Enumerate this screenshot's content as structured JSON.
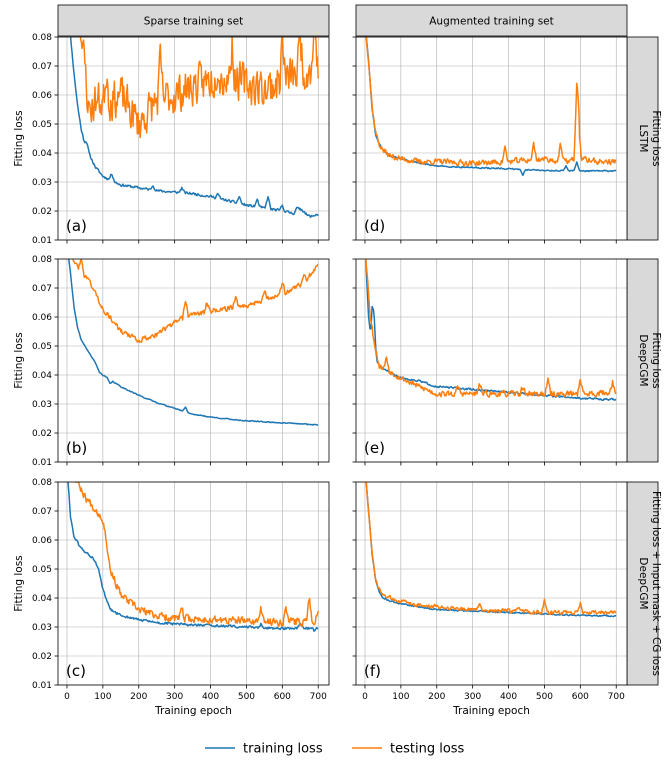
{
  "figure": {
    "legend": [
      {
        "label": "training loss",
        "color": "#1f77b4"
      },
      {
        "label": "testing loss",
        "color": "#ff7f0e"
      }
    ]
  },
  "chart_data": {
    "type": "line",
    "column_titles": [
      "Sparse training set",
      "Augmented training set"
    ],
    "row_titles": [
      [
        "LSTM",
        "Fitting loss"
      ],
      [
        "DeepCGM",
        "Fitting loss"
      ],
      [
        "DeepCGM",
        "Fitting loss + Input mask + CG loss"
      ]
    ],
    "xlabel": "Training epoch",
    "ylabel": "Fitting loss",
    "xlim": [
      -25,
      730
    ],
    "ylim": [
      0.01,
      0.08
    ],
    "xticks": [
      0,
      100,
      200,
      300,
      400,
      500,
      600,
      700
    ],
    "yticks": [
      0.01,
      0.02,
      0.03,
      0.04,
      0.05,
      0.06,
      0.07,
      0.08
    ],
    "ytick_labels": [
      "0.01",
      "0.02",
      "0.03",
      "0.04",
      "0.05",
      "0.06",
      "0.07",
      "0.08"
    ],
    "grid": true,
    "panels": [
      {
        "tag": "(a)",
        "row": 0,
        "col": 0,
        "series": [
          {
            "name": "training loss",
            "color": "#1f77b4",
            "noise": 0.0004,
            "seed": 11,
            "x": [
              0,
              10,
              20,
              30,
              40,
              50,
              60,
              80,
              100,
              150,
              200,
              250,
              300,
              350,
              400,
              450,
              500,
              550,
              600,
              640,
              650,
              660,
              680,
              690,
              695,
              700
            ],
            "y": [
              0.085,
              0.08,
              0.067,
              0.056,
              0.048,
              0.043,
              0.04,
              0.035,
              0.032,
              0.029,
              0.028,
              0.027,
              0.0265,
              0.026,
              0.025,
              0.0235,
              0.022,
              0.021,
              0.02,
              0.019,
              0.021,
              0.019,
              0.018,
              0.0185,
              0.019,
              0.0185
            ],
            "spikes": [
              [
                55,
                0.044
              ],
              [
                125,
                0.033
              ],
              [
                240,
                0.029
              ],
              [
                320,
                0.028
              ],
              [
                420,
                0.026
              ],
              [
                480,
                0.025
              ],
              [
                530,
                0.024
              ],
              [
                560,
                0.025
              ],
              [
                600,
                0.022
              ],
              [
                640,
                0.021
              ],
              [
                660,
                0.02
              ]
            ]
          },
          {
            "name": "testing loss",
            "color": "#ff7f0e",
            "noise": 0.006,
            "seed": 23,
            "x": [
              0,
              30,
              50,
              60,
              70,
              80,
              100,
              120,
              150,
              200,
              250,
              300,
              350,
              400,
              450,
              500,
              550,
              600,
              650,
              700
            ],
            "y": [
              0.09,
              0.085,
              0.07,
              0.055,
              0.056,
              0.058,
              0.058,
              0.058,
              0.06,
              0.05,
              0.058,
              0.06,
              0.063,
              0.065,
              0.066,
              0.064,
              0.062,
              0.065,
              0.068,
              0.07
            ],
            "spikes": [
              [
                35,
                0.092
              ],
              [
                110,
                0.069
              ],
              [
                260,
                0.071
              ],
              [
                420,
                0.072
              ],
              [
                460,
                0.078
              ],
              [
                600,
                0.08
              ],
              [
                650,
                0.082
              ],
              [
                690,
                0.085
              ]
            ]
          }
        ]
      },
      {
        "tag": "(d)",
        "row": 0,
        "col": 1,
        "series": [
          {
            "name": "training loss",
            "color": "#1f77b4",
            "noise": 0.0002,
            "seed": 31,
            "x": [
              0,
              10,
              20,
              30,
              40,
              50,
              70,
              100,
              150,
              200,
              300,
              400,
              500,
              600,
              700
            ],
            "y": [
              0.085,
              0.072,
              0.055,
              0.046,
              0.043,
              0.041,
              0.039,
              0.038,
              0.0365,
              0.0355,
              0.035,
              0.0345,
              0.034,
              0.0338,
              0.0338
            ],
            "spikes": [
              [
                440,
                0.0325
              ],
              [
                560,
                0.0355
              ],
              [
                590,
                0.037
              ]
            ]
          },
          {
            "name": "testing loss",
            "color": "#ff7f0e",
            "noise": 0.0009,
            "seed": 37,
            "x": [
              0,
              10,
              20,
              30,
              40,
              50,
              70,
              100,
              150,
              200,
              300,
              400,
              500,
              550,
              600,
              650,
              700
            ],
            "y": [
              0.085,
              0.072,
              0.056,
              0.047,
              0.043,
              0.041,
              0.039,
              0.038,
              0.037,
              0.037,
              0.0365,
              0.037,
              0.038,
              0.037,
              0.038,
              0.037,
              0.037
            ],
            "spikes": [
              [
                390,
                0.042
              ],
              [
                470,
                0.043
              ],
              [
                545,
                0.043
              ],
              [
                590,
                0.06
              ],
              [
                595,
                0.05
              ]
            ]
          }
        ]
      },
      {
        "tag": "(b)",
        "row": 1,
        "col": 0,
        "series": [
          {
            "name": "training loss",
            "color": "#1f77b4",
            "noise": 0.00015,
            "seed": 41,
            "x": [
              0,
              10,
              20,
              30,
              40,
              50,
              60,
              70,
              80,
              90,
              100,
              150,
              200,
              250,
              300,
              350,
              400,
              450,
              500,
              600,
              700
            ],
            "y": [
              0.085,
              0.075,
              0.063,
              0.056,
              0.052,
              0.05,
              0.048,
              0.046,
              0.044,
              0.041,
              0.04,
              0.036,
              0.033,
              0.0305,
              0.0285,
              0.0265,
              0.0255,
              0.0248,
              0.0242,
              0.0235,
              0.0228
            ],
            "spikes": [
              [
                120,
                0.037
              ],
              [
                330,
                0.029
              ]
            ]
          },
          {
            "name": "testing loss",
            "color": "#ff7f0e",
            "noise": 0.0008,
            "seed": 43,
            "x": [
              0,
              30,
              60,
              100,
              150,
              200,
              250,
              300,
              350,
              400,
              450,
              500,
              550,
              600,
              650,
              700
            ],
            "y": [
              0.085,
              0.077,
              0.073,
              0.063,
              0.055,
              0.052,
              0.054,
              0.058,
              0.061,
              0.062,
              0.063,
              0.064,
              0.066,
              0.068,
              0.071,
              0.0775
            ],
            "spikes": [
              [
                40,
                0.08
              ],
              [
                330,
                0.066
              ],
              [
                390,
                0.065
              ],
              [
                470,
                0.067
              ],
              [
                550,
                0.069
              ],
              [
                600,
                0.072
              ],
              [
                660,
                0.074
              ]
            ]
          }
        ]
      },
      {
        "tag": "(e)",
        "row": 1,
        "col": 1,
        "series": [
          {
            "name": "training loss",
            "color": "#1f77b4",
            "noise": 0.0003,
            "seed": 51,
            "x": [
              0,
              10,
              15,
              20,
              30,
              40,
              50,
              70,
              100,
              150,
              200,
              300,
              400,
              500,
              600,
              700
            ],
            "y": [
              0.085,
              0.06,
              0.055,
              0.06,
              0.046,
              0.043,
              0.042,
              0.041,
              0.039,
              0.038,
              0.036,
              0.035,
              0.034,
              0.033,
              0.032,
              0.0315
            ],
            "spikes": [
              [
                15,
                0.055
              ],
              [
                25,
                0.062
              ]
            ]
          },
          {
            "name": "testing loss",
            "color": "#ff7f0e",
            "noise": 0.0009,
            "seed": 53,
            "x": [
              0,
              15,
              25,
              40,
              60,
              100,
              150,
              200,
              300,
              400,
              500,
              600,
              700
            ],
            "y": [
              0.085,
              0.06,
              0.052,
              0.043,
              0.042,
              0.039,
              0.036,
              0.0335,
              0.0335,
              0.0335,
              0.0335,
              0.0335,
              0.034
            ],
            "spikes": [
              [
                60,
                0.046
              ],
              [
                260,
                0.036
              ],
              [
                320,
                0.037
              ],
              [
                440,
                0.036
              ],
              [
                510,
                0.038
              ],
              [
                600,
                0.039
              ],
              [
                690,
                0.038
              ]
            ]
          }
        ]
      },
      {
        "tag": "(c)",
        "row": 2,
        "col": 0,
        "series": [
          {
            "name": "training loss",
            "color": "#1f77b4",
            "noise": 0.0004,
            "seed": 61,
            "x": [
              0,
              10,
              20,
              30,
              40,
              50,
              60,
              70,
              80,
              90,
              100,
              120,
              150,
              200,
              250,
              300,
              400,
              500,
              600,
              700
            ],
            "y": [
              0.085,
              0.068,
              0.061,
              0.059,
              0.057,
              0.056,
              0.055,
              0.054,
              0.052,
              0.049,
              0.043,
              0.036,
              0.034,
              0.0325,
              0.0315,
              0.031,
              0.0305,
              0.03,
              0.0295,
              0.0295
            ],
            "spikes": [
              [
                540,
                0.031
              ],
              [
                650,
                0.031
              ],
              [
                690,
                0.0285
              ]
            ]
          },
          {
            "name": "testing loss",
            "color": "#ff7f0e",
            "noise": 0.0012,
            "seed": 67,
            "x": [
              0,
              30,
              50,
              70,
              90,
              100,
              110,
              120,
              150,
              200,
              250,
              300,
              400,
              500,
              600,
              700
            ],
            "y": [
              0.085,
              0.08,
              0.075,
              0.072,
              0.069,
              0.067,
              0.06,
              0.05,
              0.041,
              0.036,
              0.034,
              0.033,
              0.0325,
              0.032,
              0.0318,
              0.0318
            ],
            "spikes": [
              [
                320,
                0.036
              ],
              [
                540,
                0.036
              ],
              [
                610,
                0.037
              ],
              [
                675,
                0.041
              ],
              [
                700,
                0.036
              ]
            ]
          }
        ]
      },
      {
        "tag": "(f)",
        "row": 2,
        "col": 1,
        "series": [
          {
            "name": "training loss",
            "color": "#1f77b4",
            "noise": 0.0002,
            "seed": 71,
            "x": [
              0,
              10,
              20,
              30,
              40,
              50,
              70,
              100,
              150,
              200,
              300,
              400,
              500,
              600,
              700
            ],
            "y": [
              0.085,
              0.07,
              0.055,
              0.046,
              0.042,
              0.04,
              0.039,
              0.038,
              0.037,
              0.036,
              0.0355,
              0.035,
              0.0345,
              0.034,
              0.0338
            ],
            "spikes": []
          },
          {
            "name": "testing loss",
            "color": "#ff7f0e",
            "noise": 0.0006,
            "seed": 73,
            "x": [
              0,
              10,
              20,
              30,
              40,
              50,
              70,
              100,
              150,
              200,
              300,
              400,
              500,
              600,
              700
            ],
            "y": [
              0.085,
              0.07,
              0.055,
              0.046,
              0.043,
              0.041,
              0.04,
              0.039,
              0.0375,
              0.037,
              0.036,
              0.0355,
              0.035,
              0.035,
              0.035
            ],
            "spikes": [
              [
                180,
                0.037
              ],
              [
                320,
                0.038
              ],
              [
                430,
                0.037
              ],
              [
                500,
                0.039
              ],
              [
                600,
                0.038
              ]
            ]
          }
        ]
      }
    ]
  }
}
